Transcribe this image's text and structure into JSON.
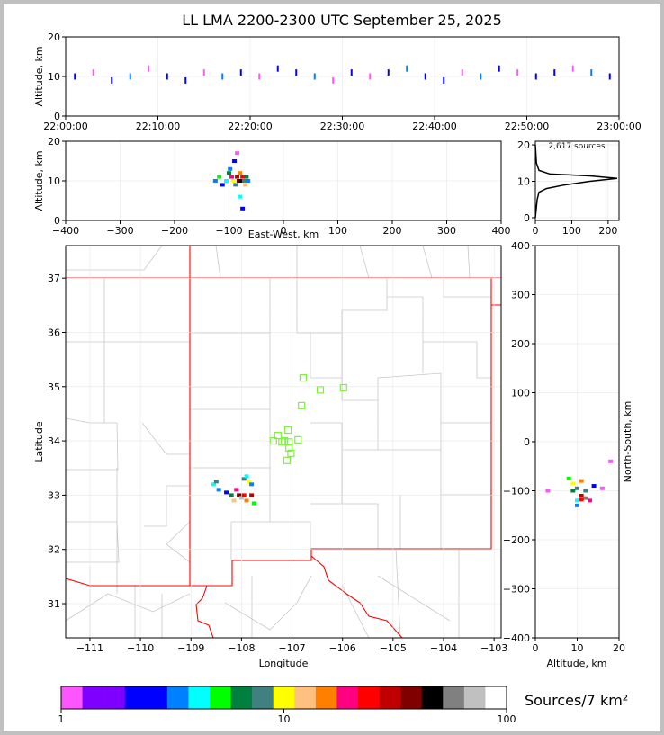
{
  "chart_data": [
    {
      "type": "scatter",
      "title": "LL LMA 2200-2300 UTC September 25, 2025",
      "ylabel": "Altitude, km",
      "xlim": [
        0,
        60
      ],
      "ylim": [
        0,
        20
      ],
      "yticks": [
        0,
        10,
        20
      ],
      "xticks": [
        {
          "value": 0,
          "label": "22:00:00"
        },
        {
          "value": 10,
          "label": "22:10:00"
        },
        {
          "value": 20,
          "label": "22:20:00"
        },
        {
          "value": 30,
          "label": "22:30:00"
        },
        {
          "value": 40,
          "label": "22:40:00"
        },
        {
          "value": 50,
          "label": "22:50:00"
        },
        {
          "value": 60,
          "label": "23:00:00"
        }
      ],
      "x": [
        1,
        3,
        5,
        7,
        9,
        11,
        13,
        15,
        17,
        19,
        21,
        23,
        25,
        27,
        29,
        31,
        33,
        35,
        37,
        39,
        41,
        43,
        45,
        47,
        49,
        51,
        53,
        55,
        57,
        59
      ],
      "y": [
        10,
        11,
        9,
        10,
        12,
        10,
        9,
        11,
        10,
        11,
        10,
        12,
        11,
        10,
        9,
        11,
        10,
        11,
        12,
        10,
        9,
        11,
        10,
        12,
        11,
        10,
        11,
        12,
        11,
        10
      ],
      "n": [
        2,
        1,
        2,
        3,
        1,
        2,
        2,
        1,
        3,
        2,
        1,
        2,
        2,
        3,
        1,
        2,
        1,
        2,
        3,
        2,
        2,
        1,
        3,
        2,
        1,
        2,
        2,
        1,
        3,
        2
      ]
    },
    {
      "type": "scatter",
      "xlabel": "East-West, km",
      "ylabel": "Altitude, km",
      "xlim": [
        -400,
        400
      ],
      "ylim": [
        0,
        20
      ],
      "yticks": [
        0,
        10,
        20
      ],
      "xticks": [
        {
          "value": -400,
          "label": "−400"
        },
        {
          "value": -300,
          "label": "−300"
        },
        {
          "value": -200,
          "label": "−200"
        },
        {
          "value": -100,
          "label": "−100"
        },
        0,
        100,
        200,
        300,
        400
      ],
      "x": [
        -125,
        -118,
        -112,
        -105,
        -100,
        -95,
        -92,
        -88,
        -85,
        -82,
        -80,
        -78,
        -75,
        -72,
        -70,
        -68,
        -65,
        -90,
        -85,
        -98,
        -80,
        -75
      ],
      "y": [
        10,
        11,
        9,
        10,
        12,
        11,
        10,
        9,
        11,
        10,
        12,
        10,
        11,
        10,
        9,
        11,
        10,
        15,
        17,
        13,
        6,
        3
      ],
      "n": [
        3,
        5,
        2,
        4,
        6,
        20,
        10,
        8,
        30,
        40,
        15,
        50,
        25,
        8,
        12,
        6,
        3,
        2,
        1,
        3,
        4,
        2
      ]
    },
    {
      "type": "line",
      "annotation": "2,617 sources",
      "color": "#000000",
      "xlim": [
        0,
        230
      ],
      "ylim": [
        -0.74,
        21
      ],
      "xticks": [
        0,
        100,
        200
      ],
      "yticks": [
        0,
        10,
        20
      ],
      "x": [
        0,
        5,
        10,
        30,
        80,
        150,
        225,
        150,
        40,
        10,
        3,
        0
      ],
      "y": [
        0,
        5,
        7,
        8,
        9,
        10,
        10.8,
        11.5,
        12,
        13,
        15,
        20
      ]
    },
    {
      "type": "scatter",
      "xlabel": "Longitude",
      "ylabel": "Latitude",
      "xlim": [
        -111.48,
        -102.86
      ],
      "ylim": [
        30.37,
        37.6
      ],
      "xticks": [
        {
          "value": -111,
          "label": "−111"
        },
        {
          "value": -110,
          "label": "−110"
        },
        {
          "value": -109,
          "label": "−109"
        },
        {
          "value": -108,
          "label": "−108"
        },
        {
          "value": -107,
          "label": "−107"
        },
        {
          "value": -106,
          "label": "−106"
        },
        {
          "value": -105,
          "label": "−105"
        },
        {
          "value": -104,
          "label": "−104"
        },
        {
          "value": -103,
          "label": "−103"
        }
      ],
      "yticks": [
        31,
        32,
        33,
        34,
        35,
        36,
        37
      ],
      "x": [
        -108.55,
        -108.5,
        -108.45,
        -108.3,
        -108.2,
        -108.15,
        -108.05,
        -108.0,
        -107.95,
        -107.9,
        -107.85,
        -107.8,
        -107.75,
        -108.1,
        -107.95,
        -107.9,
        -107.8
      ],
      "y": [
        33.2,
        33.25,
        33.1,
        33.05,
        33.0,
        32.9,
        33.0,
        32.95,
        33.0,
        32.9,
        33.25,
        33.0,
        32.85,
        33.1,
        33.3,
        33.35,
        33.2
      ],
      "n": [
        4,
        8,
        3,
        2,
        6,
        12,
        40,
        80,
        25,
        15,
        10,
        30,
        5,
        20,
        8,
        4,
        3
      ],
      "stations": {
        "color": "#80f040",
        "lon": [
          -106.78,
          -106.44,
          -105.98,
          -106.81,
          -107.08,
          -107.28,
          -107.37,
          -107.2,
          -107.06,
          -106.88,
          -107.06,
          -107.02,
          -107.1,
          -107.15
        ],
        "lat": [
          35.16,
          34.94,
          34.98,
          34.65,
          34.2,
          34.1,
          34.0,
          33.98,
          33.98,
          34.02,
          33.87,
          33.77,
          33.64,
          34.0
        ]
      }
    },
    {
      "type": "scatter",
      "xlabel": "Altitude, km",
      "ylabel": "North-South, km",
      "xlim": [
        0,
        20
      ],
      "ylim": [
        -400,
        400
      ],
      "xticks": [
        0,
        10,
        20
      ],
      "yticks": [
        {
          "value": -400,
          "label": "−400"
        },
        {
          "value": -300,
          "label": "−300"
        },
        {
          "value": -200,
          "label": "−200"
        },
        {
          "value": -100,
          "label": "−100"
        },
        0,
        100,
        200,
        300,
        400
      ],
      "x": [
        8,
        9,
        10,
        11,
        12,
        13,
        9,
        10,
        11,
        12,
        10,
        11,
        14,
        16,
        3,
        18
      ],
      "y": [
        -75,
        -85,
        -95,
        -110,
        -115,
        -120,
        -100,
        -120,
        -80,
        -100,
        -130,
        -118,
        -90,
        -95,
        -100,
        -40
      ],
      "n": [
        5,
        10,
        8,
        30,
        60,
        20,
        6,
        4,
        15,
        8,
        3,
        25,
        2,
        1,
        1,
        1
      ]
    },
    {
      "type": "colorbar",
      "label": "Sources/7 km²",
      "xlim": [
        1,
        100
      ],
      "xticks": [
        1,
        10,
        100
      ],
      "log": true,
      "colors": [
        "#ff55ff",
        "#8000ff",
        "#8000ff",
        "#0000ff",
        "#0000ff",
        "#0080ff",
        "#00ffff",
        "#00ff00",
        "#008040",
        "#408080",
        "#ffff00",
        "#ffc080",
        "#ff8000",
        "#ff0080",
        "#ff0000",
        "#c00000",
        "#800000",
        "#000000",
        "#808080",
        "#c0c0c0",
        "#ffffff"
      ]
    }
  ]
}
